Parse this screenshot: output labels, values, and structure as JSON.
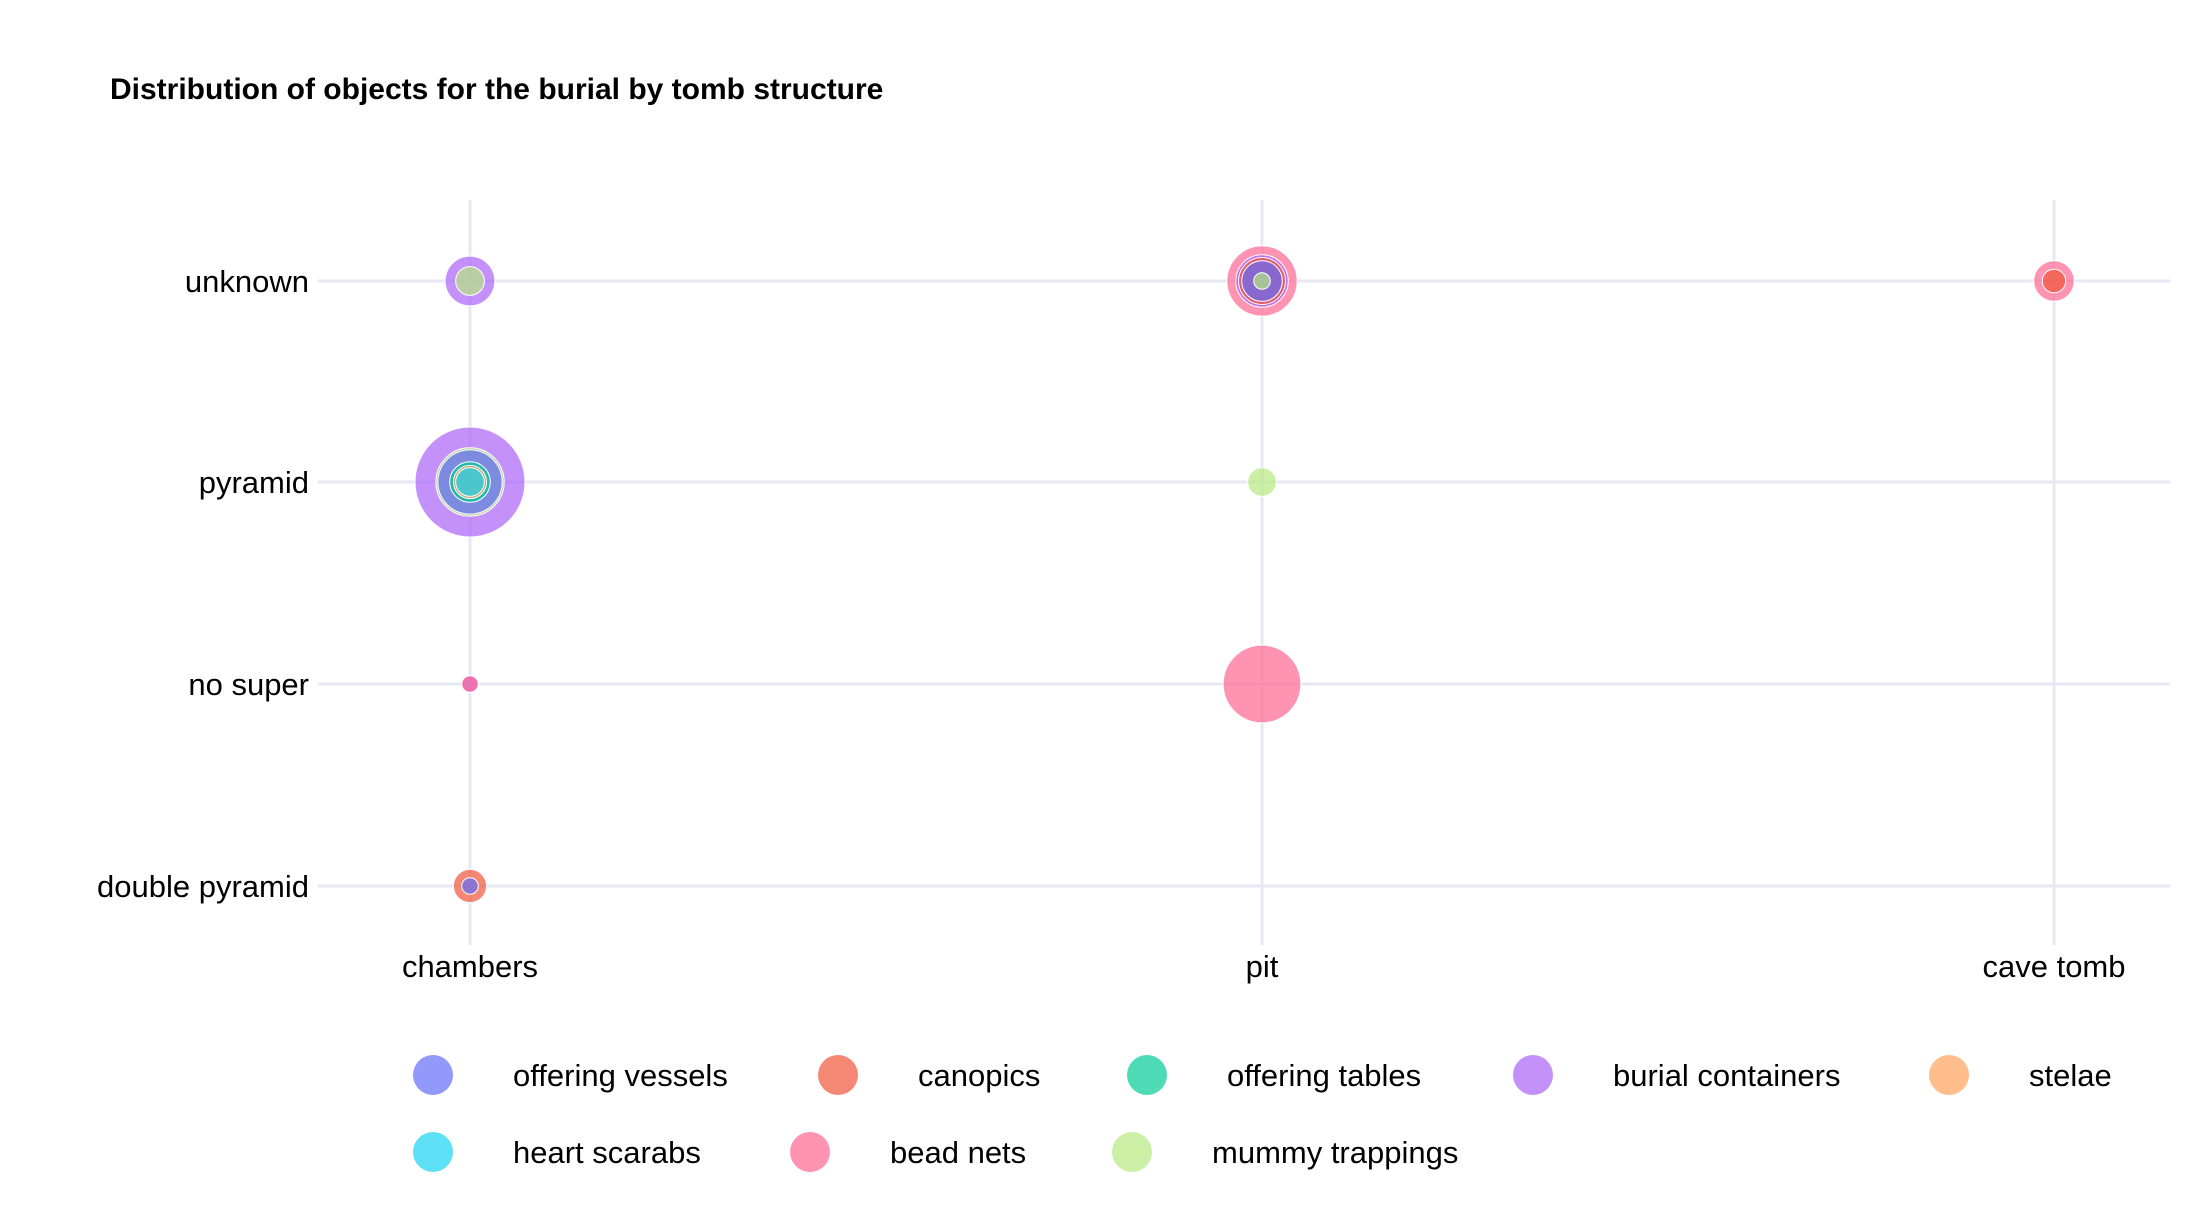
{
  "chart_data": {
    "type": "scatter",
    "title": "Distribution of objects for the burial by tomb structure",
    "xlabel": "",
    "ylabel": "",
    "x_categories": [
      "chambers",
      "pit",
      "cave tomb"
    ],
    "y_categories": [
      "double pyramid",
      "no super",
      "pyramid",
      "unknown"
    ],
    "grid": true,
    "legend_position": "bottom",
    "size_encoding": "bubble area proportional to count",
    "series": [
      {
        "name": "offering vessels",
        "color": "#636efa",
        "points": [
          {
            "x": "chambers",
            "y": "double pyramid",
            "size": 1
          },
          {
            "x": "chambers",
            "y": "pyramid",
            "size": 15
          },
          {
            "x": "pit",
            "y": "unknown",
            "size": 6
          }
        ]
      },
      {
        "name": "canopics",
        "color": "#ef553b",
        "points": [
          {
            "x": "chambers",
            "y": "double pyramid",
            "size": 4
          },
          {
            "x": "pit",
            "y": "unknown",
            "size": 8
          },
          {
            "x": "cave tomb",
            "y": "unknown",
            "size": 2
          }
        ]
      },
      {
        "name": "offering tables",
        "color": "#00cc96",
        "points": [
          {
            "x": "chambers",
            "y": "pyramid",
            "size": 6
          }
        ]
      },
      {
        "name": "burial containers",
        "color": "#ab63fa",
        "points": [
          {
            "x": "chambers",
            "y": "unknown",
            "size": 9
          },
          {
            "x": "chambers",
            "y": "pyramid",
            "size": 44
          },
          {
            "x": "chambers",
            "y": "no super",
            "size": 1
          },
          {
            "x": "pit",
            "y": "unknown",
            "size": 10
          }
        ]
      },
      {
        "name": "stelae",
        "color": "#ffa15a",
        "points": [
          {
            "x": "chambers",
            "y": "pyramid",
            "size": 4
          }
        ]
      },
      {
        "name": "heart scarabs",
        "color": "#19d3f3",
        "points": [
          {
            "x": "chambers",
            "y": "pyramid",
            "size": 3
          }
        ]
      },
      {
        "name": "bead nets",
        "color": "#ff6692",
        "points": [
          {
            "x": "chambers",
            "y": "no super",
            "size": 1
          },
          {
            "x": "pit",
            "y": "unknown",
            "size": 18
          },
          {
            "x": "pit",
            "y": "no super",
            "size": 22
          },
          {
            "x": "cave tomb",
            "y": "unknown",
            "size": 6
          }
        ]
      },
      {
        "name": "mummy trappings",
        "color": "#b6e880",
        "points": [
          {
            "x": "chambers",
            "y": "unknown",
            "size": 3
          },
          {
            "x": "chambers",
            "y": "pyramid",
            "size": 17
          },
          {
            "x": "pit",
            "y": "unknown",
            "size": 1
          },
          {
            "x": "pit",
            "y": "pyramid",
            "size": 3
          }
        ]
      }
    ]
  }
}
